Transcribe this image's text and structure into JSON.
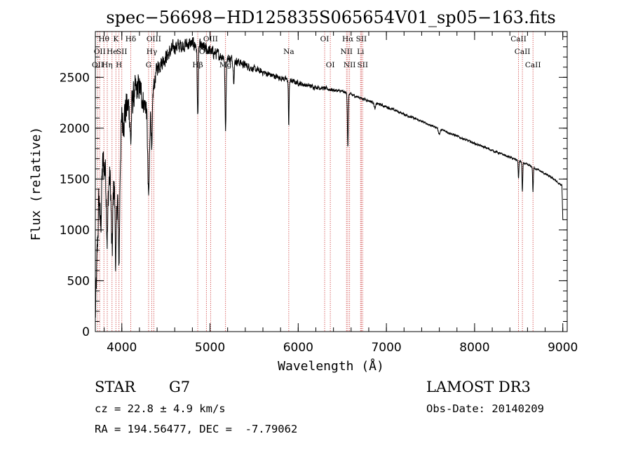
{
  "chart_data": {
    "type": "line",
    "title": "spec−56698−HD125835S065654V01_sp05−163.fits",
    "xlabel": "Wavelength (Å)",
    "ylabel": "Flux (relative)",
    "xlim": [
      3700,
      9050
    ],
    "ylim": [
      0,
      2950
    ],
    "xticks": [
      {
        "v": 4000,
        "label": "4000"
      },
      {
        "v": 5000,
        "label": "5000"
      },
      {
        "v": 6000,
        "label": "6000"
      },
      {
        "v": 7000,
        "label": "7000"
      },
      {
        "v": 8000,
        "label": "8000"
      },
      {
        "v": 9000,
        "label": "9000"
      }
    ],
    "xminor": 200,
    "yticks": [
      {
        "v": 0,
        "label": "0"
      },
      {
        "v": 500,
        "label": "500"
      },
      {
        "v": 1000,
        "label": "1000"
      },
      {
        "v": 1500,
        "label": "1500"
      },
      {
        "v": 2000,
        "label": "2000"
      },
      {
        "v": 2500,
        "label": "2500"
      }
    ],
    "yminor": 100,
    "line_color": "#d04040",
    "lines": [
      {
        "wl": 3727,
        "label": "OII",
        "row": 2
      },
      {
        "wl": 3750,
        "label": "OII",
        "row": 1
      },
      {
        "wl": 3797,
        "label": "Hθ",
        "row": 0
      },
      {
        "wl": 3835,
        "label": "Hη",
        "row": 2
      },
      {
        "wl": 3889,
        "label": "He",
        "row": 1
      },
      {
        "wl": 3933,
        "label": "K",
        "row": 0
      },
      {
        "wl": 3968,
        "label": "H",
        "row": 2
      },
      {
        "wl": 4000,
        "label": "SII",
        "row": 1
      },
      {
        "wl": 4101,
        "label": "Hδ",
        "row": 0
      },
      {
        "wl": 4304,
        "label": "G",
        "row": 2
      },
      {
        "wl": 4340,
        "label": "Hγ",
        "row": 1
      },
      {
        "wl": 4363,
        "label": "OIII",
        "row": 0
      },
      {
        "wl": 4861,
        "label": "Hβ",
        "row": 2
      },
      {
        "wl": 4959,
        "label": "OIII",
        "row": 1
      },
      {
        "wl": 5007,
        "label": "OIII",
        "row": 0
      },
      {
        "wl": 5176,
        "label": "Mg",
        "row": 2
      },
      {
        "wl": 5893,
        "label": "Na",
        "row": 1
      },
      {
        "wl": 6300,
        "label": "OI",
        "row": 0
      },
      {
        "wl": 6364,
        "label": "OI",
        "row": 2
      },
      {
        "wl": 6548,
        "label": "NII",
        "row": 1
      },
      {
        "wl": 6563,
        "label": "Hα",
        "row": 0
      },
      {
        "wl": 6583,
        "label": "NII",
        "row": 2
      },
      {
        "wl": 6707,
        "label": "Li",
        "row": 1
      },
      {
        "wl": 6716,
        "label": "SII",
        "row": 0
      },
      {
        "wl": 6731,
        "label": "SII",
        "row": 2
      },
      {
        "wl": 8498,
        "label": "CaII",
        "row": 0
      },
      {
        "wl": 8542,
        "label": "CaII",
        "row": 1
      },
      {
        "wl": 8662,
        "label": "CaII",
        "row": 2
      }
    ],
    "spectrum": {
      "continuum": [
        [
          3700,
          120
        ],
        [
          3740,
          1300
        ],
        [
          3790,
          1650
        ],
        [
          3850,
          1500
        ],
        [
          3900,
          1450
        ],
        [
          3960,
          1500
        ],
        [
          4000,
          2050
        ],
        [
          4050,
          2200
        ],
        [
          4100,
          2200
        ],
        [
          4150,
          2350
        ],
        [
          4200,
          2400
        ],
        [
          4250,
          2250
        ],
        [
          4300,
          2200
        ],
        [
          4350,
          2350
        ],
        [
          4400,
          2600
        ],
        [
          4500,
          2700
        ],
        [
          4600,
          2800
        ],
        [
          4700,
          2820
        ],
        [
          4800,
          2830
        ],
        [
          4900,
          2800
        ],
        [
          5000,
          2760
        ],
        [
          5100,
          2720
        ],
        [
          5300,
          2660
        ],
        [
          5500,
          2580
        ],
        [
          5700,
          2520
        ],
        [
          5900,
          2470
        ],
        [
          6100,
          2420
        ],
        [
          6300,
          2390
        ],
        [
          6500,
          2360
        ],
        [
          6700,
          2300
        ],
        [
          7000,
          2210
        ],
        [
          7500,
          2030
        ],
        [
          8000,
          1850
        ],
        [
          8500,
          1680
        ],
        [
          8700,
          1600
        ],
        [
          8900,
          1500
        ],
        [
          8960,
          1450
        ],
        [
          8990,
          1440
        ],
        [
          9000,
          1100
        ]
      ],
      "absorption": [
        [
          3760,
          400,
          8
        ],
        [
          3835,
          600,
          8
        ],
        [
          3889,
          700,
          8
        ],
        [
          3933,
          800,
          8
        ],
        [
          3968,
          900,
          8
        ],
        [
          4101,
          350,
          6
        ],
        [
          4304,
          900,
          10
        ],
        [
          4340,
          600,
          6
        ],
        [
          4861,
          700,
          6
        ],
        [
          5176,
          700,
          6
        ],
        [
          5270,
          180,
          6
        ],
        [
          5893,
          450,
          4
        ],
        [
          6563,
          520,
          5
        ],
        [
          6870,
          60,
          8
        ],
        [
          7600,
          50,
          10
        ],
        [
          8498,
          180,
          4
        ],
        [
          8542,
          290,
          4
        ],
        [
          8662,
          240,
          4
        ]
      ],
      "noise": [
        [
          3700,
          300
        ],
        [
          4000,
          300
        ],
        [
          4400,
          120
        ],
        [
          5000,
          90
        ],
        [
          5500,
          50
        ],
        [
          6500,
          25
        ],
        [
          7500,
          15
        ],
        [
          9050,
          15
        ]
      ]
    }
  },
  "info": {
    "object_class": "STAR",
    "subclass": "G7",
    "survey": "LAMOST DR3",
    "cz": "cz = 22.8 ± 4.9 km/s",
    "obs_date": "Obs-Date: 20140209",
    "coords": "RA = 194.56477, DEC =  -7.79062"
  }
}
